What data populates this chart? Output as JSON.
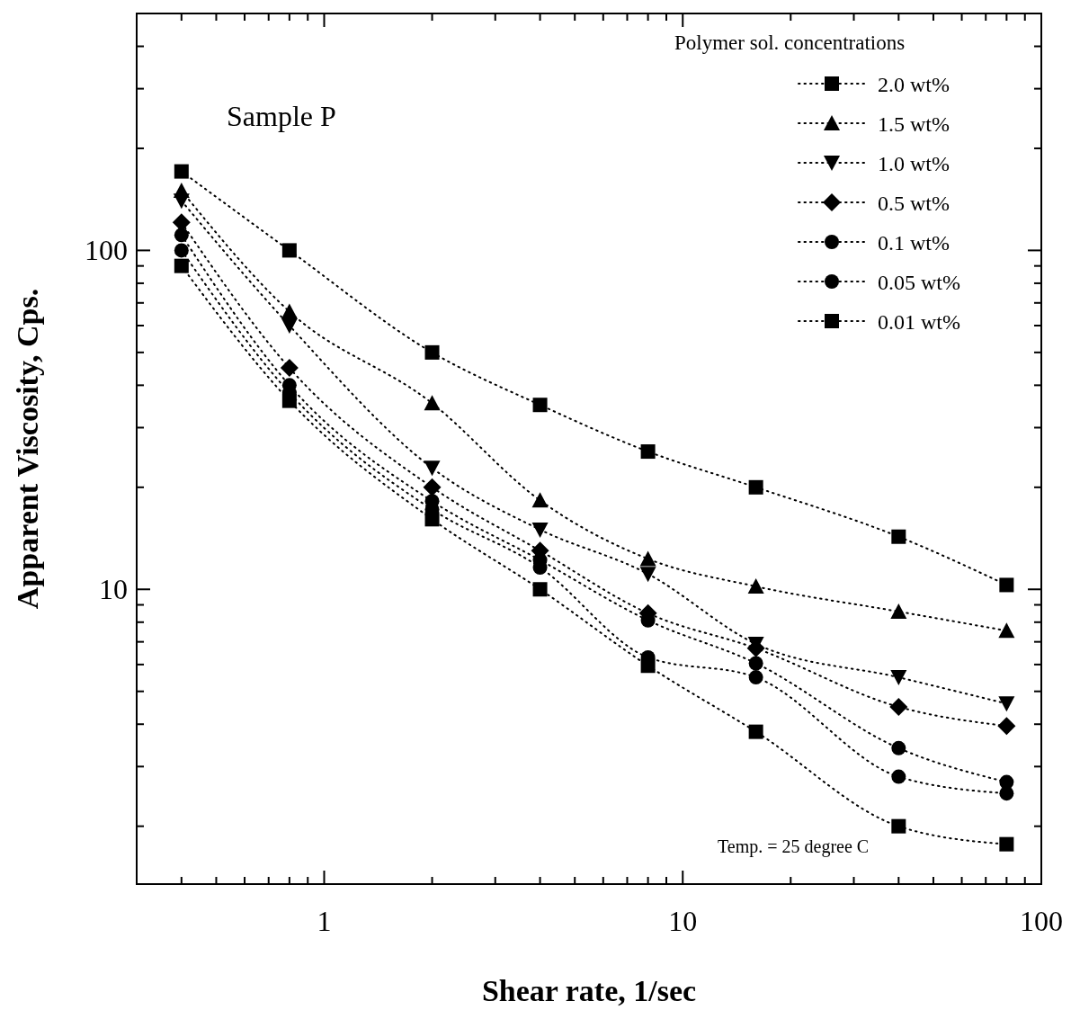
{
  "chart_data": {
    "type": "line",
    "xlabel": "Shear rate, 1/sec",
    "ylabel": "Apparent Viscosity, Cps.",
    "legend_title": "Polymer sol. concentrations",
    "legend": "top right",
    "log": "xy",
    "line_style": "dotted",
    "grid": false,
    "x": [
      0.4,
      0.8,
      2,
      4,
      8,
      16,
      40,
      80
    ],
    "xlim": [
      0.3,
      100
    ],
    "ylim": [
      1.35,
      500
    ],
    "xticks": [
      {
        "value": 0.3,
        "label": null
      },
      {
        "value": 0.4,
        "label": null
      },
      {
        "value": 0.5,
        "label": null
      },
      {
        "value": 0.6,
        "label": null
      },
      {
        "value": 0.7,
        "label": null
      },
      {
        "value": 0.8,
        "label": null
      },
      {
        "value": 0.9,
        "label": null
      },
      1,
      {
        "value": 2,
        "label": null
      },
      {
        "value": 3,
        "label": null
      },
      {
        "value": 4,
        "label": null
      },
      {
        "value": 5,
        "label": null
      },
      {
        "value": 6,
        "label": null
      },
      {
        "value": 7,
        "label": null
      },
      {
        "value": 8,
        "label": null
      },
      {
        "value": 9,
        "label": null
      },
      10,
      {
        "value": 20,
        "label": null
      },
      {
        "value": 30,
        "label": null
      },
      {
        "value": 40,
        "label": null
      },
      {
        "value": 50,
        "label": null
      },
      {
        "value": 60,
        "label": null
      },
      {
        "value": 70,
        "label": null
      },
      {
        "value": 80,
        "label": null
      },
      {
        "value": 90,
        "label": null
      },
      100
    ],
    "yticks": [
      {
        "value": 2,
        "label": null
      },
      {
        "value": 3,
        "label": null
      },
      {
        "value": 4,
        "label": null
      },
      {
        "value": 5,
        "label": null
      },
      {
        "value": 6,
        "label": null
      },
      {
        "value": 7,
        "label": null
      },
      {
        "value": 8,
        "label": null
      },
      {
        "value": 9,
        "label": null
      },
      10,
      {
        "value": 20,
        "label": null
      },
      {
        "value": 30,
        "label": null
      },
      {
        "value": 40,
        "label": null
      },
      {
        "value": 50,
        "label": null
      },
      {
        "value": 60,
        "label": null
      },
      {
        "value": 70,
        "label": null
      },
      {
        "value": 80,
        "label": null
      },
      {
        "value": 90,
        "label": null
      },
      100,
      {
        "value": 200,
        "label": null
      },
      {
        "value": 300,
        "label": null
      },
      {
        "value": 400,
        "label": null
      },
      {
        "value": 500,
        "label": null
      }
    ],
    "annotations": [
      "Sample P",
      "Temp. = 25 degree C"
    ],
    "series": [
      {
        "name": "2.0 wt%",
        "color": "#000000",
        "marker": "square",
        "values": [
          171,
          100,
          50,
          35,
          25.5,
          20,
          14.3,
          10.3
        ]
      },
      {
        "name": "1.5 wt%",
        "color": "#000000",
        "marker": "triangle",
        "values": [
          150,
          66,
          35.4,
          18.3,
          12.3,
          10.2,
          8.6,
          7.55
        ]
      },
      {
        "name": "1.0 wt%",
        "color": "#000000",
        "marker": "triangle-down",
        "values": [
          140,
          60,
          22.8,
          15,
          11.1,
          6.9,
          5.5,
          4.6
        ]
      },
      {
        "name": "0.5 wt%",
        "color": "#000000",
        "marker": "diamond",
        "values": [
          121,
          45,
          20,
          13,
          8.5,
          6.7,
          4.5,
          3.95
        ]
      },
      {
        "name": "0.1 wt%",
        "color": "#000000",
        "marker": "circle",
        "values": [
          111,
          40,
          18.2,
          12.2,
          8.1,
          6.05,
          3.4,
          2.7
        ]
      },
      {
        "name": "0.05 wt%",
        "color": "#000000",
        "marker": "circle",
        "values": [
          100,
          38,
          17.2,
          11.6,
          6.3,
          5.5,
          2.8,
          2.5
        ]
      },
      {
        "name": "0.01 wt%",
        "color": "#000000",
        "marker": "square",
        "values": [
          90,
          36,
          16.1,
          10,
          5.95,
          3.8,
          2.0,
          1.77
        ]
      }
    ]
  }
}
